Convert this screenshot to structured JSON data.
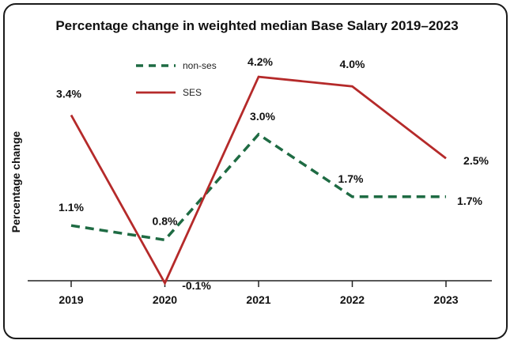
{
  "chart_data": {
    "type": "line",
    "title": "Percentage change in weighted median Base Salary 2019–2023",
    "xlabel": "",
    "ylabel": "Percentage change",
    "categories": [
      "2019",
      "2020",
      "2021",
      "2022",
      "2023"
    ],
    "ylim": [
      -0.1,
      4.3
    ],
    "grid": false,
    "legend_position": "top-left",
    "series": [
      {
        "name": "non-ses",
        "values": [
          1.1,
          0.8,
          3.0,
          1.7,
          1.7
        ],
        "labels": [
          "1.1%",
          "0.8%",
          "3.0%",
          "1.7%",
          "1.7%"
        ],
        "color": "#1e6b43",
        "style": "dashed"
      },
      {
        "name": "SES",
        "values": [
          3.4,
          -0.1,
          4.2,
          4.0,
          2.5
        ],
        "labels": [
          "3.4%",
          "-0.1%",
          "4.2%",
          "4.0%",
          "2.5%"
        ],
        "color": "#b52a2a",
        "style": "solid"
      }
    ]
  }
}
